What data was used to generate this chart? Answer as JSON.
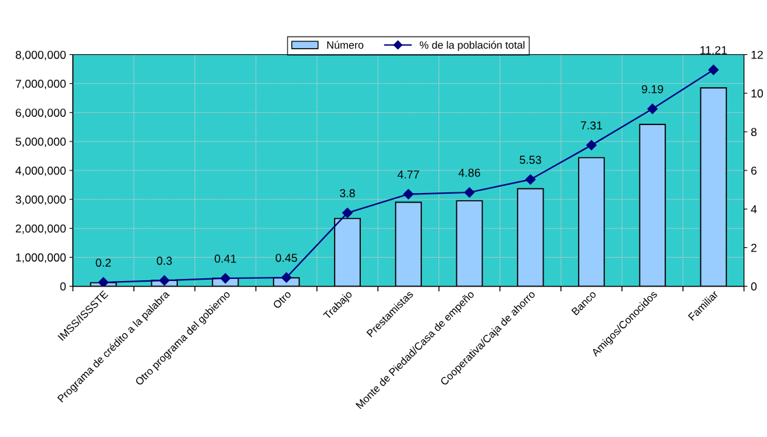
{
  "chart_data": {
    "type": "bar",
    "categories": [
      "IMSS/ISSSTE",
      "Programa de crédito a la palabra",
      "Otro programa del gobierno",
      "Otro",
      "Trabajo",
      "Prestamistas",
      "Monte de Piedad/Casa de empeño",
      "Cooperativa/Caja de ahorro",
      "Banco",
      "Amigos/Conocidos",
      "Familiar"
    ],
    "series": [
      {
        "name": "Número",
        "color": "#99ccff",
        "values": [
          120000,
          200000,
          280000,
          290000,
          2340000,
          2900000,
          2950000,
          3370000,
          4440000,
          5590000,
          6850000
        ]
      },
      {
        "name": "% de la población total",
        "type": "line",
        "axis": "y2",
        "color": "#000080",
        "marker": "diamond",
        "data_labels": true,
        "values": [
          0.2,
          0.3,
          0.41,
          0.45,
          3.8,
          4.77,
          4.86,
          5.53,
          7.31,
          9.19,
          11.21
        ]
      }
    ],
    "ylim": [
      0,
      8000000
    ],
    "yticks": [
      {
        "value": 0,
        "label": "0"
      },
      {
        "value": 1000000,
        "label": "1,000,000"
      },
      {
        "value": 2000000,
        "label": "2,000,000"
      },
      {
        "value": 3000000,
        "label": "3,000,000"
      },
      {
        "value": 4000000,
        "label": "4,000,000"
      },
      {
        "value": 5000000,
        "label": "5,000,000"
      },
      {
        "value": 6000000,
        "label": "6,000,000"
      },
      {
        "value": 7000000,
        "label": "7,000,000"
      },
      {
        "value": 8000000,
        "label": "8,000,000"
      }
    ],
    "y2lim": [
      0,
      12
    ],
    "y2ticks": [
      0,
      2,
      4,
      6,
      8,
      10,
      12
    ],
    "grid": true,
    "legend": "top"
  }
}
